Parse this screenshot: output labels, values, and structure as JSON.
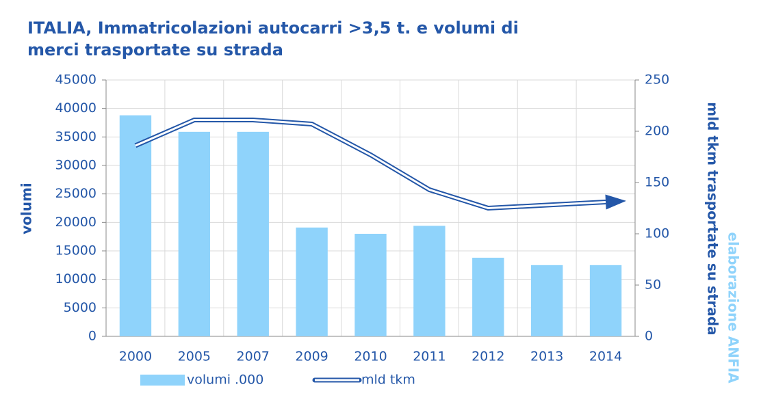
{
  "chart_data": {
    "type": "bar-line",
    "title": [
      "ITALIA, Immatricolazioni autocarri >3,5 t. e volumi di",
      "merci trasportate su strada"
    ],
    "y_label": "volumi",
    "y2_label": "mld tkm trasportate su strada",
    "source": "elaborazione ANFIA",
    "categories": [
      "2000",
      "2005",
      "2007",
      "2009",
      "2010",
      "2011",
      "2012",
      "2013",
      "2014"
    ],
    "series": [
      {
        "name": "volumi .000",
        "type": "bar",
        "color": "#8fd3fb",
        "values": [
          38800,
          35900,
          35900,
          19100,
          18000,
          19400,
          13800,
          12500,
          12500
        ]
      },
      {
        "name": "mld tkm",
        "type": "line",
        "axis": "y2",
        "color": "#2457a8",
        "values": [
          186,
          211,
          211,
          207,
          177,
          143,
          125,
          128,
          131
        ]
      }
    ],
    "ylim": [
      0,
      45000
    ],
    "yticks": [
      0,
      5000,
      10000,
      15000,
      20000,
      25000,
      30000,
      35000,
      40000,
      45000
    ],
    "y2lim": [
      0,
      250
    ],
    "y2ticks": [
      0,
      50,
      100,
      150,
      200,
      250
    ],
    "grid": true
  }
}
